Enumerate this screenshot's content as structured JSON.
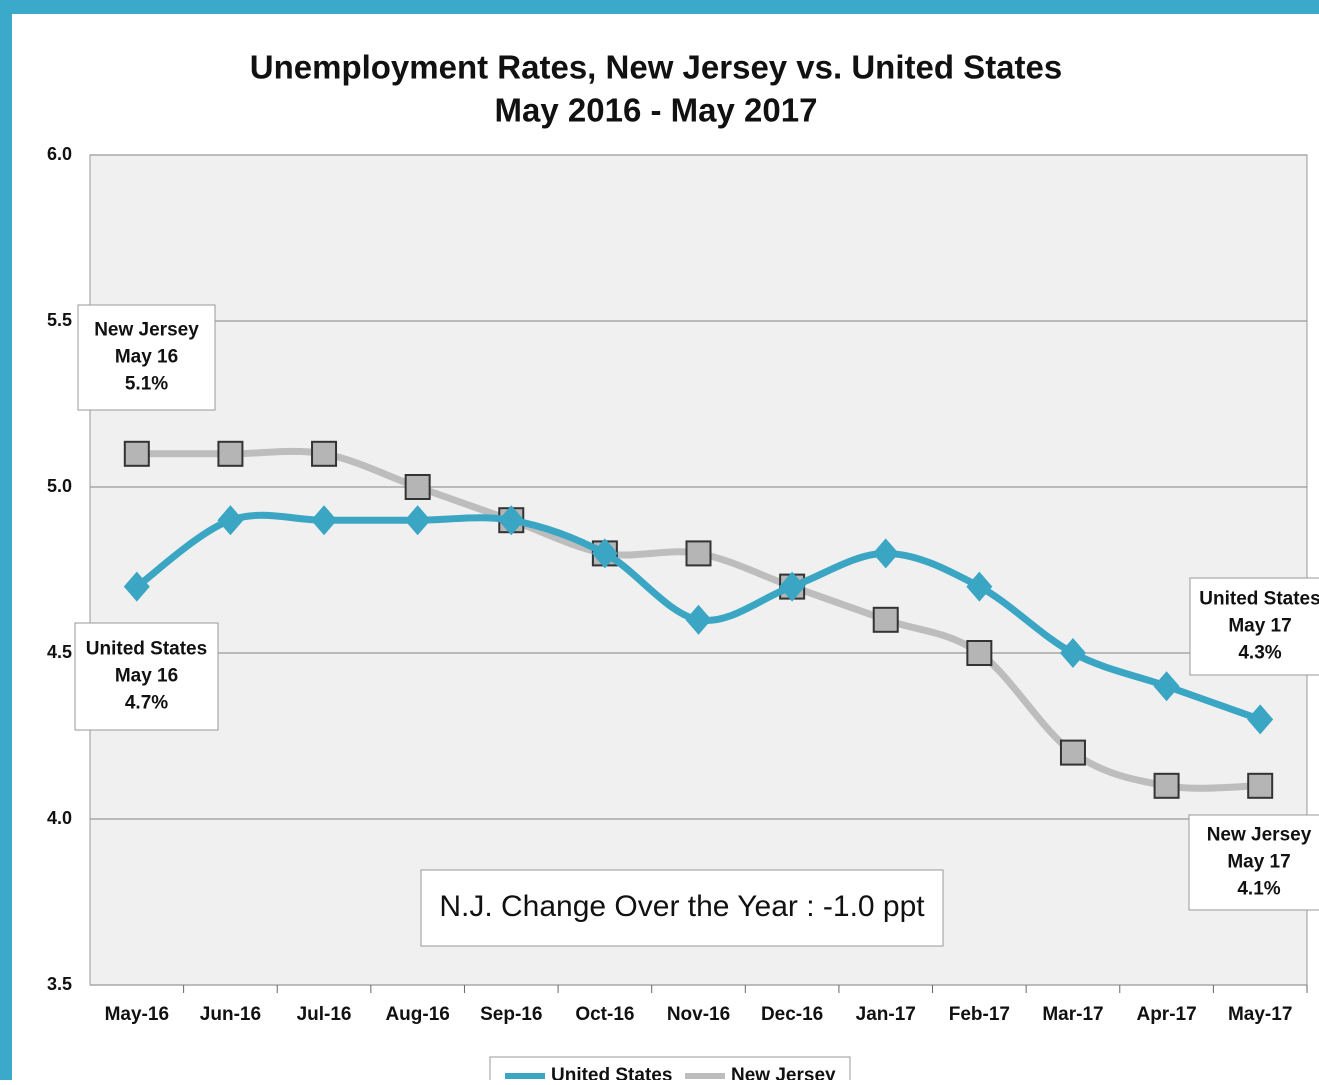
{
  "chart_data": {
    "type": "line",
    "title": "Unemployment Rates, New Jersey vs. United States",
    "subtitle": "May 2016 - May 2017",
    "categories": [
      "May-16",
      "Jun-16",
      "Jul-16",
      "Aug-16",
      "Sep-16",
      "Oct-16",
      "Nov-16",
      "Dec-16",
      "Jan-17",
      "Feb-17",
      "Mar-17",
      "Apr-17",
      "May-17"
    ],
    "series": [
      {
        "name": "United States",
        "color": "#3aa6c4",
        "marker": "diamond",
        "values": [
          4.7,
          4.9,
          4.9,
          4.9,
          4.9,
          4.8,
          4.6,
          4.7,
          4.8,
          4.7,
          4.5,
          4.4,
          4.3
        ]
      },
      {
        "name": "New Jersey",
        "color": "#bdbdbd",
        "marker": "square",
        "values": [
          5.1,
          5.1,
          5.1,
          5.0,
          4.9,
          4.8,
          4.8,
          4.7,
          4.6,
          4.5,
          4.2,
          4.1,
          4.1
        ]
      }
    ],
    "ylim": [
      3.5,
      6.0
    ],
    "yticks": [
      3.5,
      {
        "value": 4.0,
        "label": "4.0"
      },
      4.5,
      {
        "value": 5.0,
        "label": "5.0"
      },
      5.5,
      {
        "value": 6.0,
        "label": "6.0"
      }
    ],
    "grid": true,
    "annotations": [
      {
        "lines": [
          "New Jersey",
          "May 16",
          "5.1%"
        ]
      },
      {
        "lines": [
          "United States",
          "May 16",
          "4.7%"
        ]
      },
      {
        "lines": [
          "United States",
          "May 17",
          "4.3%"
        ]
      },
      {
        "lines": [
          "New Jersey",
          "May 17",
          "4.1%"
        ]
      },
      {
        "lines": [
          "N.J. Change Over the Year : -1.0 ppt"
        ]
      }
    ],
    "legend": "bottom"
  }
}
